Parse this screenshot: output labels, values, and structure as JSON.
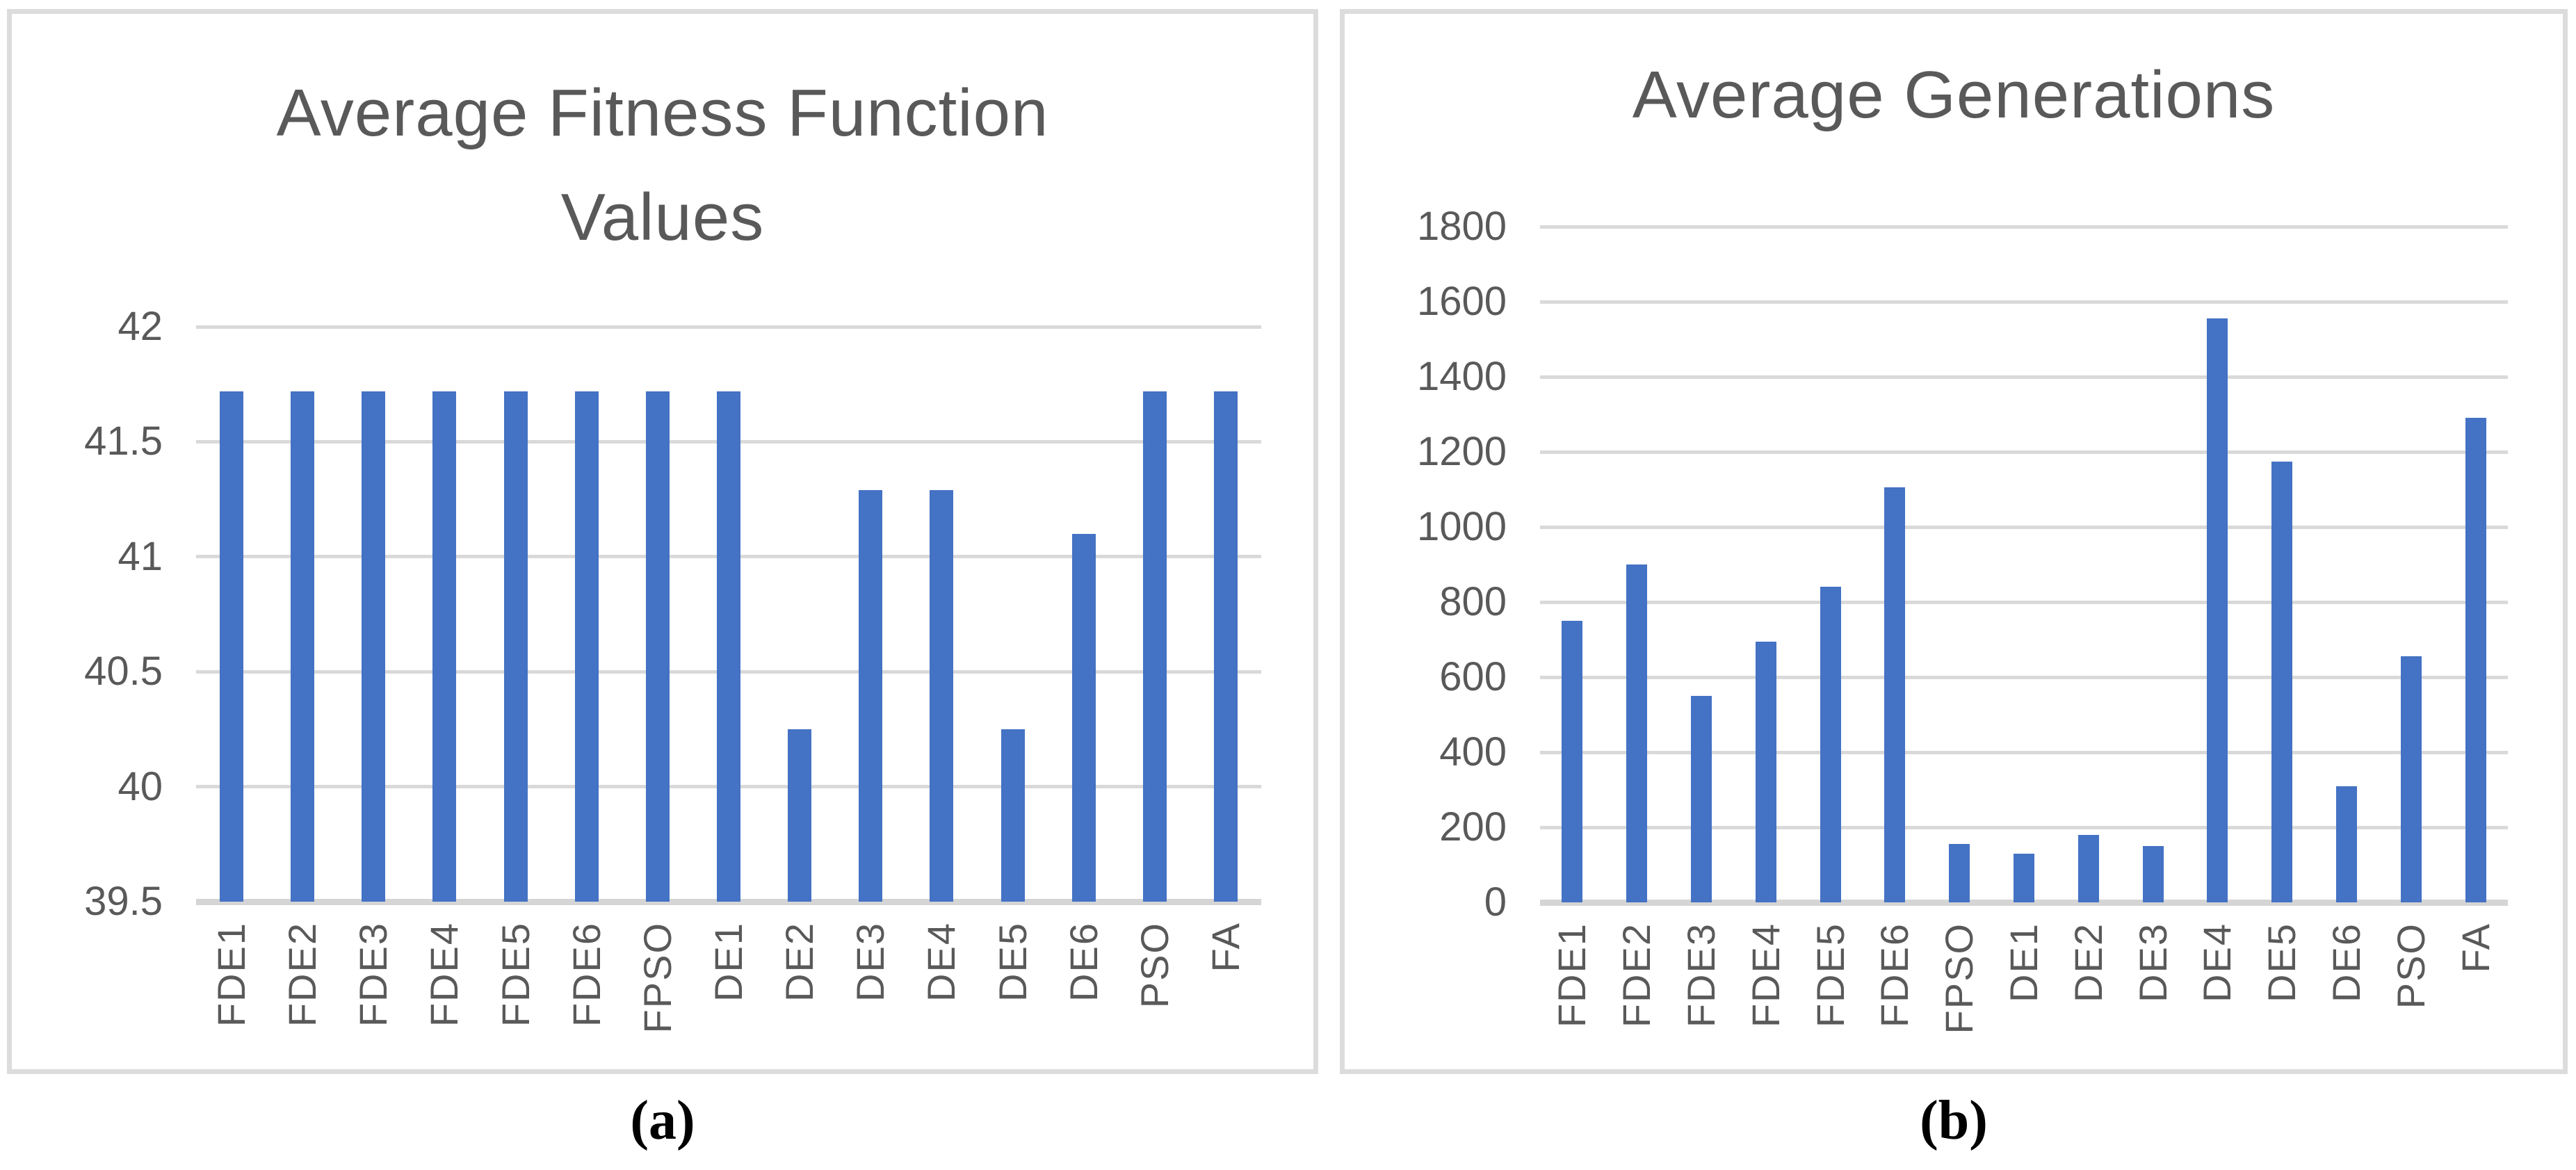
{
  "figure": {
    "captions": [
      "(a)",
      "(b)"
    ]
  },
  "colors": {
    "bar": "#4472c4",
    "gridline": "#d9d9d9",
    "baseline": "#d5d5d5",
    "text": "#595959",
    "panel_border": "#dcdcdc"
  },
  "chart_data": [
    {
      "id": "average-fitness-function-values",
      "type": "bar",
      "title": "Average Fitness Function Values",
      "title_lines": [
        "Average Fitness Function",
        "Values"
      ],
      "categories": [
        "FDE1",
        "FDE2",
        "FDE3",
        "FDE4",
        "FDE5",
        "FDE6",
        "FPSO",
        "DE1",
        "DE2",
        "DE3",
        "DE4",
        "DE5",
        "DE6",
        "PSO",
        "FA"
      ],
      "values": [
        41.72,
        41.72,
        41.72,
        41.72,
        41.72,
        41.72,
        41.72,
        41.72,
        40.25,
        41.29,
        41.29,
        40.25,
        41.1,
        41.72,
        41.72
      ],
      "xlabel": "",
      "ylabel": "",
      "ylim": [
        39.5,
        42
      ],
      "grid": true,
      "legend": false,
      "yticks": [
        {
          "v": 42,
          "label": "42"
        },
        {
          "v": 41.5,
          "label": "41.5"
        },
        {
          "v": 41,
          "label": "41"
        },
        {
          "v": 40.5,
          "label": "40.5"
        },
        {
          "v": 40,
          "label": "40"
        },
        {
          "v": 39.5,
          "label": "39.5"
        }
      ]
    },
    {
      "id": "average-generations",
      "type": "bar",
      "title": "Average Generations",
      "title_lines": [
        "Average Generations"
      ],
      "categories": [
        "FDE1",
        "FDE2",
        "FDE3",
        "FDE4",
        "FDE5",
        "FDE6",
        "FPSO",
        "DE1",
        "DE2",
        "DE3",
        "DE4",
        "DE5",
        "DE6",
        "PSO",
        "FA"
      ],
      "values": [
        750,
        900,
        550,
        695,
        840,
        1105,
        155,
        130,
        180,
        150,
        1555,
        1175,
        310,
        655,
        1290
      ],
      "xlabel": "",
      "ylabel": "",
      "ylim": [
        0,
        1800
      ],
      "grid": true,
      "legend": false,
      "yticks": [
        {
          "v": 1800,
          "label": "1800"
        },
        {
          "v": 1600,
          "label": "1600"
        },
        {
          "v": 1400,
          "label": "1400"
        },
        {
          "v": 1200,
          "label": "1200"
        },
        {
          "v": 1000,
          "label": "1000"
        },
        {
          "v": 800,
          "label": "800"
        },
        {
          "v": 600,
          "label": "600"
        },
        {
          "v": 400,
          "label": "400"
        },
        {
          "v": 200,
          "label": "200"
        },
        {
          "v": 0,
          "label": "0"
        }
      ]
    }
  ]
}
